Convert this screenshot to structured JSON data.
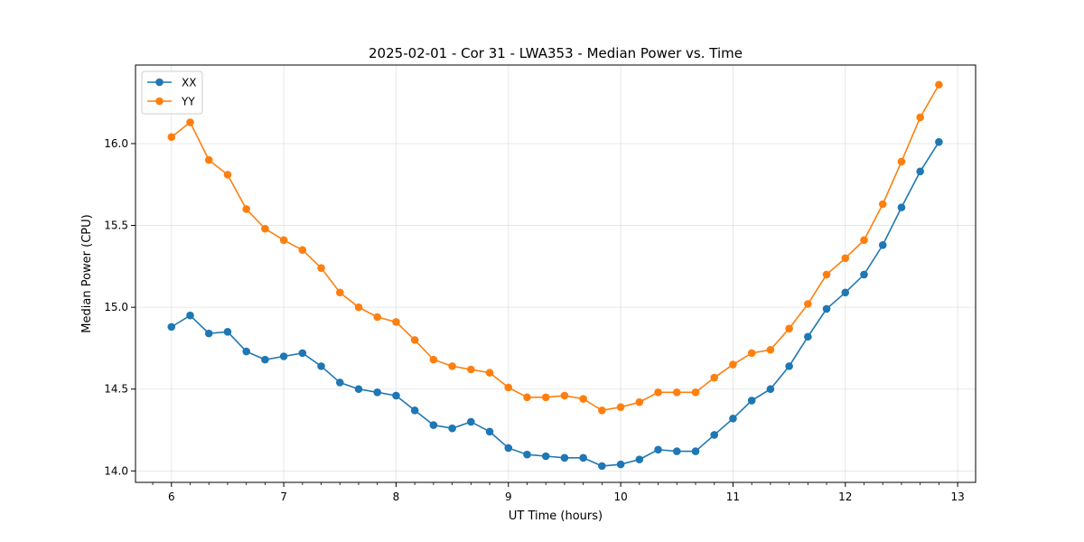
{
  "chart_data": {
    "type": "line",
    "title": "2025-02-01 - Cor 31 - LWA353 - Median Power vs. Time",
    "xlabel": "UT Time (hours)",
    "ylabel": "Median Power (CPU)",
    "xlim": [
      5.68,
      13.16
    ],
    "ylim": [
      13.93,
      16.48
    ],
    "xticks": [
      6,
      7,
      8,
      9,
      10,
      11,
      12,
      13
    ],
    "xtick_labels": [
      "6",
      "7",
      "8",
      "9",
      "10",
      "11",
      "12",
      "13"
    ],
    "yticks": [
      14.0,
      14.5,
      15.0,
      15.5,
      16.0
    ],
    "ytick_labels": [
      "14.0",
      "14.5",
      "15.0",
      "15.5",
      "16.0"
    ],
    "grid": true,
    "legend_position": "top-left",
    "x": [
      6.0,
      6.1667,
      6.3333,
      6.5,
      6.6667,
      6.8333,
      7.0,
      7.1667,
      7.3333,
      7.5,
      7.6667,
      7.8333,
      8.0,
      8.1667,
      8.3333,
      8.5,
      8.6667,
      8.8333,
      9.0,
      9.1667,
      9.3333,
      9.5,
      9.6667,
      9.8333,
      10.0,
      10.1667,
      10.3333,
      10.5,
      10.6667,
      10.8333,
      11.0,
      11.1667,
      11.3333,
      11.5,
      11.6667,
      11.8333,
      12.0,
      12.1667,
      12.3333,
      12.5,
      12.6667,
      12.8333
    ],
    "series": [
      {
        "name": "XX",
        "color": "#1f77b4",
        "values": [
          14.88,
          14.95,
          14.84,
          14.85,
          14.73,
          14.68,
          14.7,
          14.72,
          14.64,
          14.54,
          14.5,
          14.48,
          14.46,
          14.37,
          14.28,
          14.26,
          14.3,
          14.24,
          14.14,
          14.1,
          14.09,
          14.08,
          14.08,
          14.03,
          14.04,
          14.07,
          14.13,
          14.12,
          14.12,
          14.22,
          14.32,
          14.43,
          14.5,
          14.64,
          14.82,
          14.99,
          15.09,
          15.2,
          15.38,
          15.61,
          15.83,
          16.01
        ]
      },
      {
        "name": "YY",
        "color": "#ff7f0e",
        "values": [
          16.04,
          16.13,
          15.9,
          15.81,
          15.6,
          15.48,
          15.41,
          15.35,
          15.24,
          15.09,
          15.0,
          14.94,
          14.91,
          14.8,
          14.68,
          14.64,
          14.62,
          14.6,
          14.51,
          14.45,
          14.45,
          14.46,
          14.44,
          14.37,
          14.39,
          14.42,
          14.48,
          14.48,
          14.48,
          14.57,
          14.65,
          14.72,
          14.74,
          14.87,
          15.02,
          15.2,
          15.3,
          15.41,
          15.63,
          15.89,
          16.16,
          16.36
        ]
      }
    ]
  }
}
